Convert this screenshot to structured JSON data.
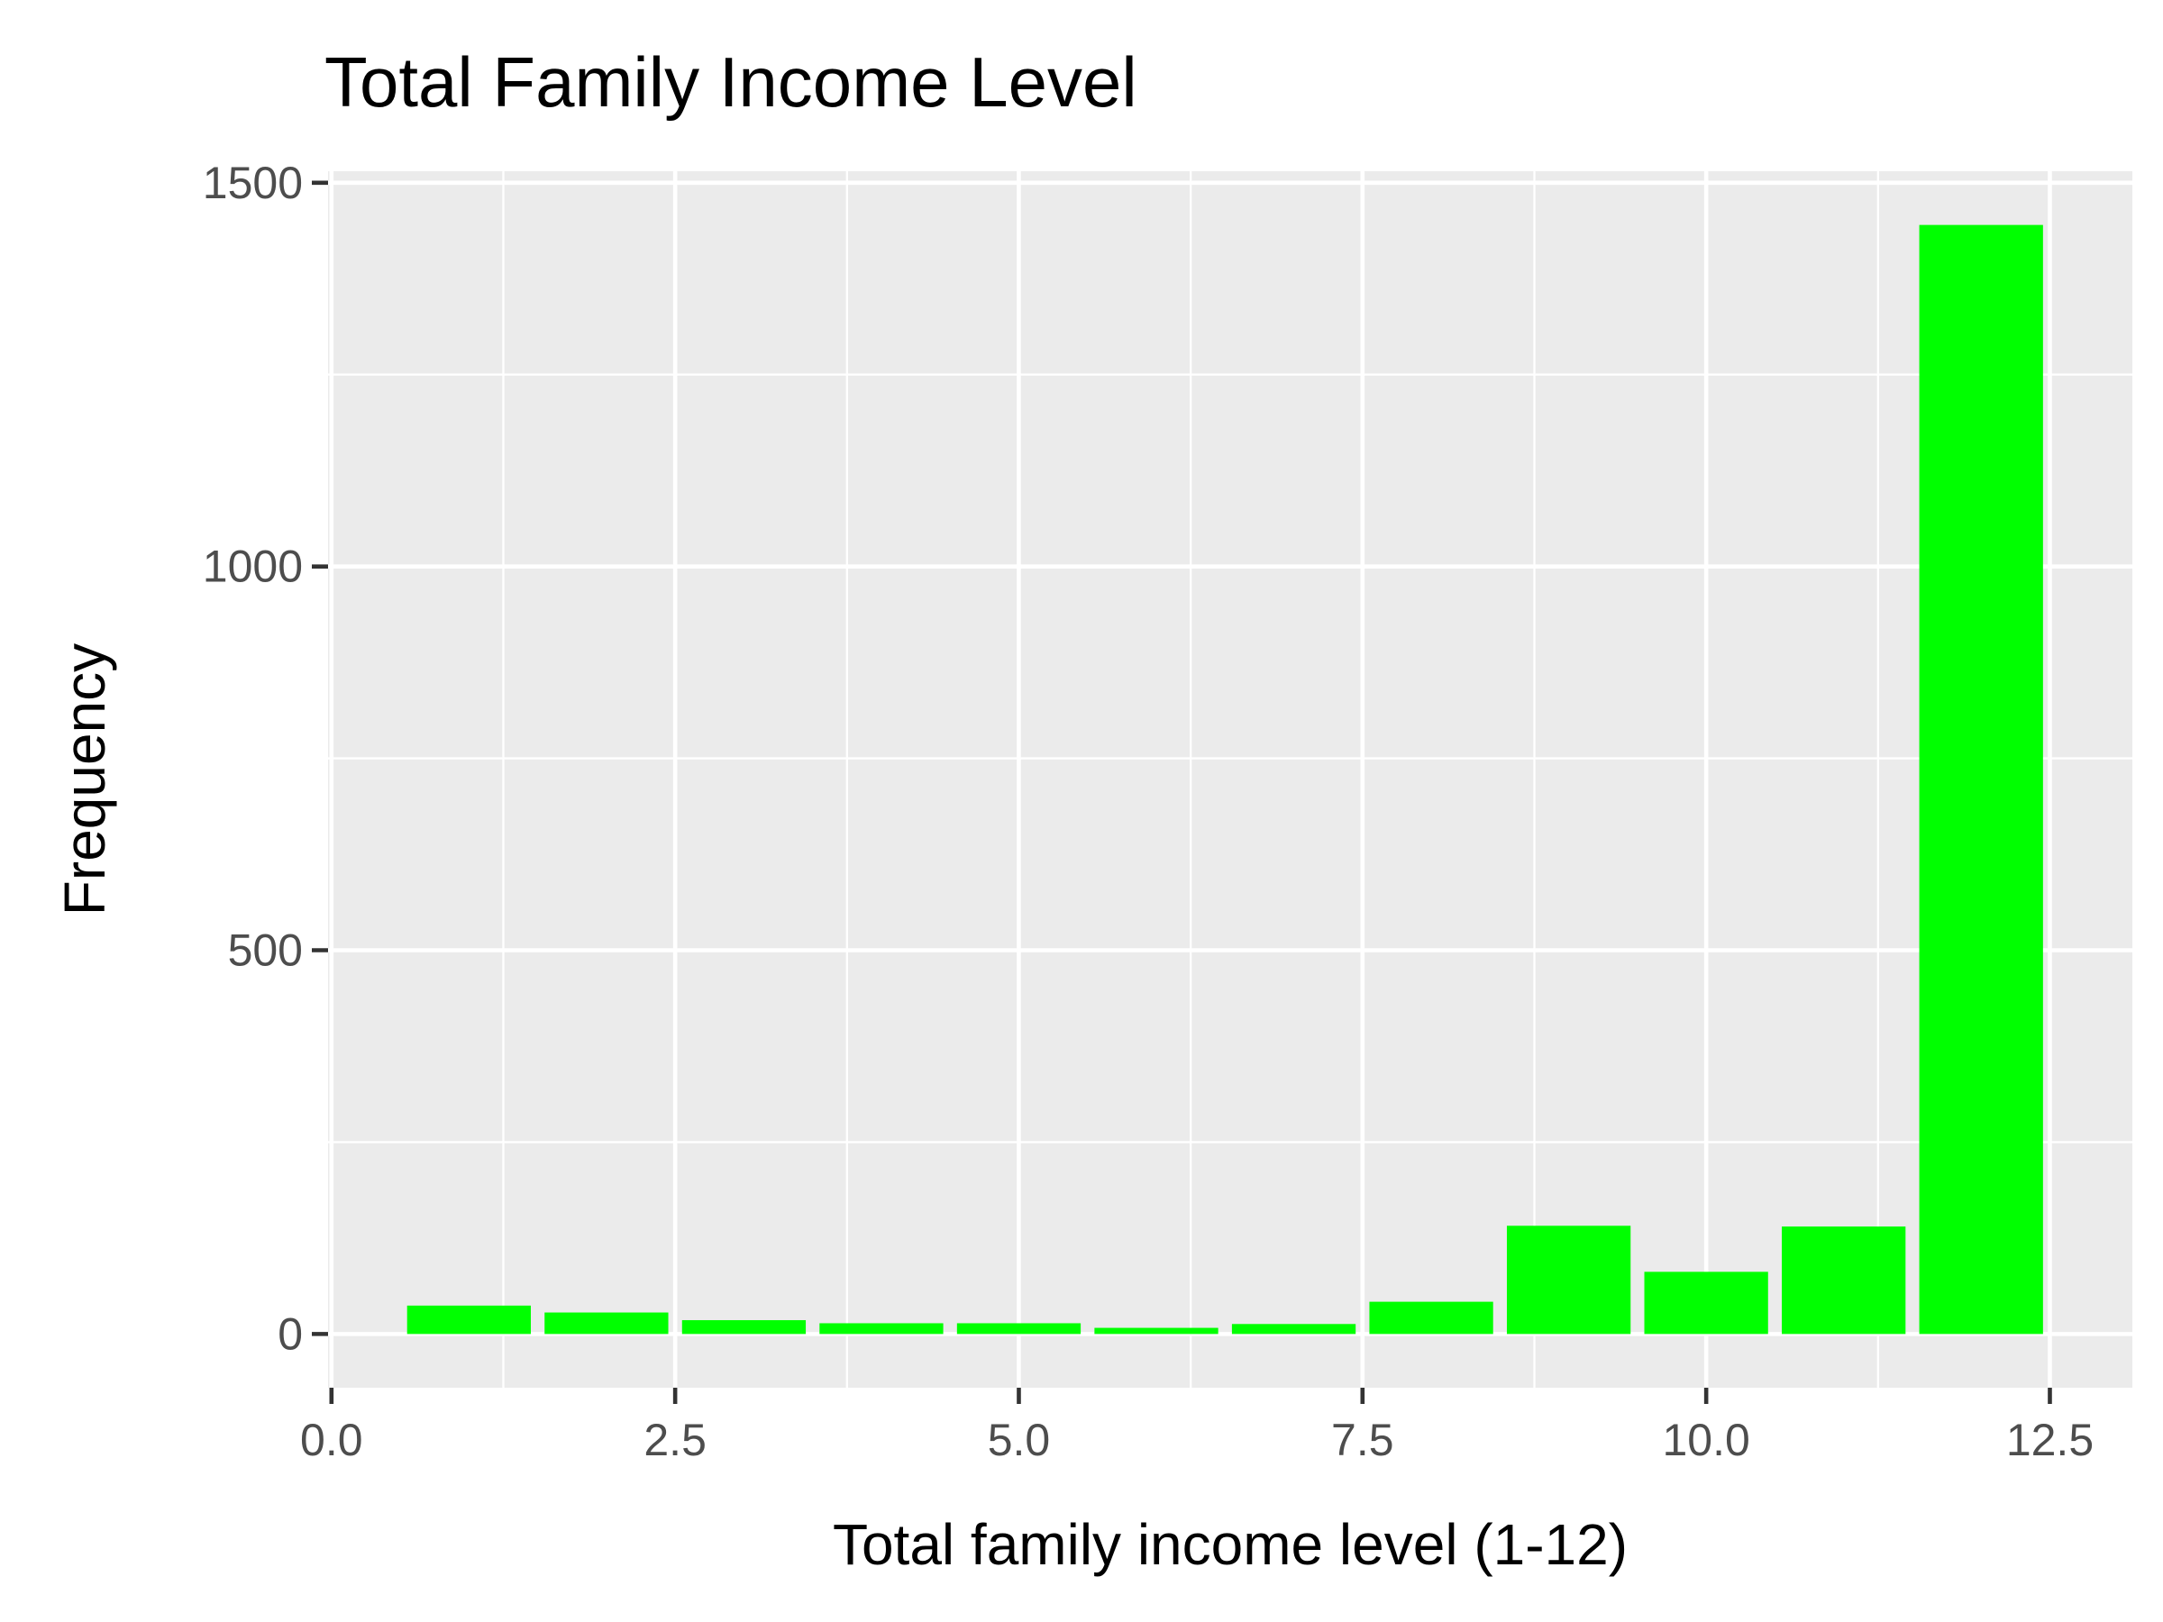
{
  "chart_data": {
    "type": "bar",
    "title": "Total Family Income Level",
    "xlabel": "Total family income level (1-12)",
    "ylabel": "Frequency",
    "x": [
      1,
      2,
      3,
      4,
      5,
      6,
      7,
      8,
      9,
      10,
      11,
      12
    ],
    "values": [
      37,
      28,
      18,
      14,
      14,
      8,
      13,
      42,
      141,
      81,
      140,
      1445
    ],
    "xlim": [
      -0.025,
      13.1
    ],
    "ylim": [
      -70,
      1515
    ],
    "xticks": [
      0,
      2.5,
      5,
      7.5,
      10,
      12.5
    ],
    "xtick_labels": [
      "0.0",
      "2.5",
      "5.0",
      "7.5",
      "10.0",
      "12.5"
    ],
    "yticks": [
      0,
      500,
      1000,
      1500
    ],
    "ytick_labels": [
      "0",
      "500",
      "1000",
      "1500"
    ],
    "bar_color": "#00ff00",
    "panel_background": "#ebebeb",
    "grid": true,
    "legend": "none"
  }
}
